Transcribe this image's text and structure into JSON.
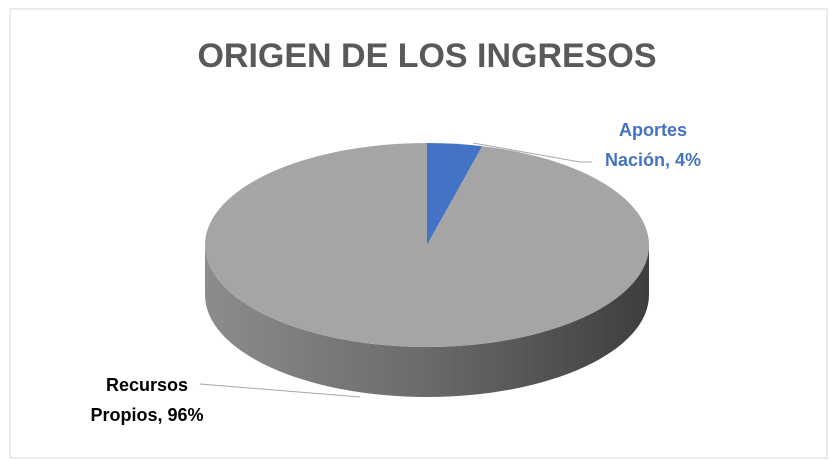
{
  "chart_data": {
    "type": "pie",
    "three_d": true,
    "title": "ORIGEN DE LOS INGRESOS",
    "categories": [
      "Aportes Nación",
      "Recursos Propios"
    ],
    "values": [
      4,
      96
    ],
    "value_labels": [
      "Aportes Nación, 4%",
      "Recursos Propios, 96%"
    ],
    "colors": [
      "#4472c4",
      "#a5a5a5"
    ],
    "label_colors": [
      "#4472c4",
      "#000000"
    ]
  }
}
